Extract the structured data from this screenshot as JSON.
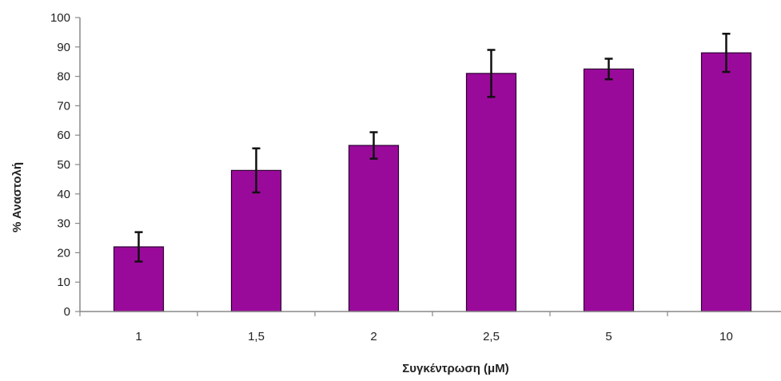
{
  "chart_data": {
    "type": "bar",
    "categories": [
      "1",
      "1,5",
      "2",
      "2,5",
      "5",
      "10"
    ],
    "values": [
      22,
      48,
      56.5,
      81,
      82.5,
      88
    ],
    "errors": [
      5,
      7.5,
      4.5,
      8,
      3.5,
      6.5
    ],
    "xlabel": "Συγκέντρωση (μM)",
    "ylabel": "% Αναστολή",
    "ylim": [
      0,
      100
    ],
    "yticks": [
      0,
      10,
      20,
      30,
      40,
      50,
      60,
      70,
      80,
      90,
      100
    ],
    "grid": false,
    "legend": "none",
    "bar_color": "#9a0a9a",
    "bar_edge_color": "#2a0030",
    "error_color": "#111111",
    "axis_color": "#888888"
  }
}
